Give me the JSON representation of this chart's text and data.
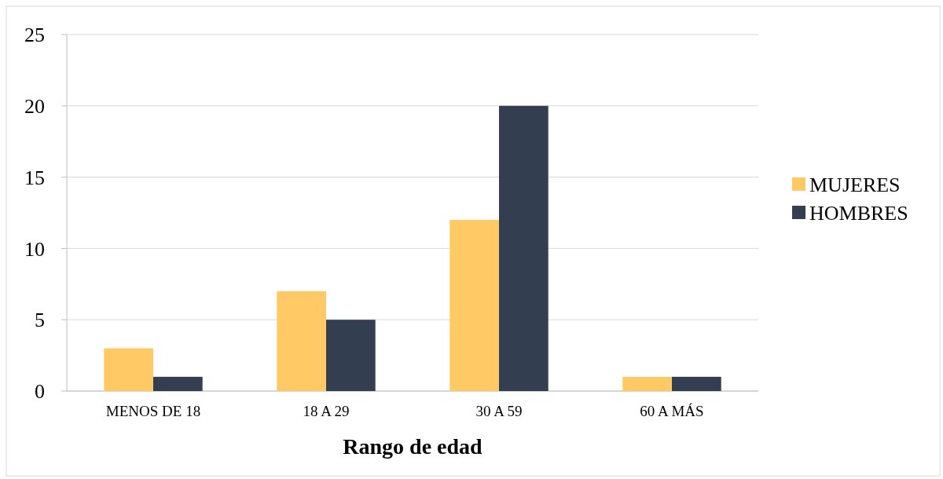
{
  "chart_data": {
    "type": "bar",
    "xlabel": "Rango de edad",
    "categories": [
      "MENOS DE 18",
      "18 A 29",
      "30 A 59",
      "60 A MÁS"
    ],
    "series": [
      {
        "name": "MUJERES",
        "color": "#ffca65",
        "values": [
          3,
          7,
          12,
          1
        ]
      },
      {
        "name": "HOMBRES",
        "color": "#333e50",
        "values": [
          1,
          5,
          20,
          1
        ]
      }
    ],
    "ylim": [
      0,
      25
    ],
    "yticks": [
      0,
      5,
      10,
      15,
      20,
      25
    ],
    "grid": "y",
    "legend": "right"
  }
}
